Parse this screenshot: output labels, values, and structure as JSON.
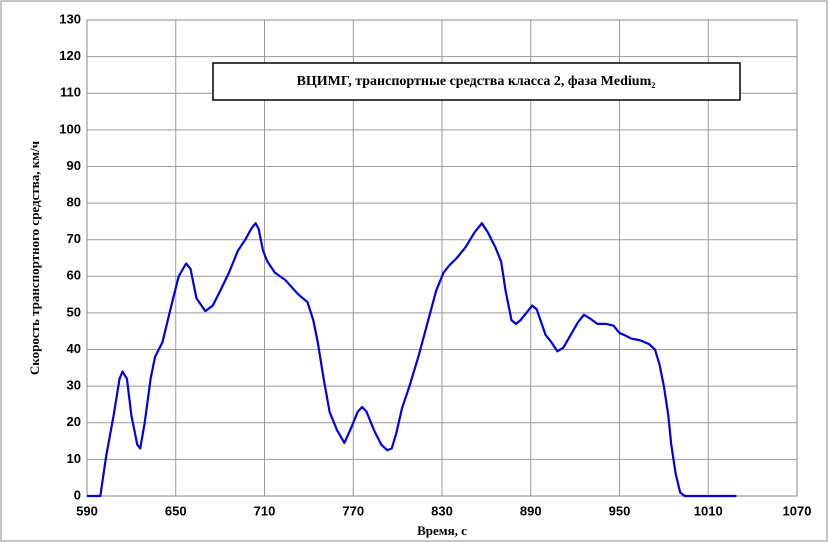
{
  "chart_data": {
    "type": "line",
    "title": "ВЦИМГ, транспортные средства класса 2, фаза Medium₂",
    "x_label": "Время, с",
    "y_label": "Скорость транспортного средства, км/ч",
    "x": [
      590,
      599,
      603,
      608,
      612,
      614,
      617,
      620,
      624,
      626,
      629,
      633,
      636,
      641,
      647,
      652,
      657,
      660,
      664,
      670,
      675,
      680,
      686,
      692,
      697,
      701,
      704,
      706,
      709,
      712,
      717,
      724,
      733,
      739,
      743,
      746,
      750,
      754,
      759,
      764,
      769,
      773,
      776,
      779,
      784,
      789,
      793,
      796,
      799,
      803,
      808,
      814,
      820,
      826,
      831,
      835,
      840,
      846,
      852,
      857,
      861,
      866,
      870,
      873,
      877,
      880,
      883,
      887,
      891,
      894,
      900,
      904,
      908,
      912,
      917,
      922,
      926,
      930,
      935,
      941,
      946,
      950,
      953,
      958,
      964,
      970,
      974,
      977,
      980,
      983,
      985,
      988,
      991,
      994,
      1029
    ],
    "series": [
      {
        "name": "Скорость",
        "color": "#0000e0",
        "values": [
          0,
          0,
          11,
          22,
          32,
          34,
          32,
          22,
          14,
          13,
          20,
          32,
          38,
          42,
          52,
          60,
          63.5,
          62,
          54,
          50.5,
          52,
          56,
          61,
          67,
          70,
          73,
          74.5,
          73,
          67,
          64,
          61,
          59,
          55,
          53,
          48,
          42,
          32,
          23,
          18,
          14.5,
          19,
          23,
          24.3,
          23,
          18,
          14,
          12.5,
          13,
          17,
          24,
          30,
          38,
          47,
          56,
          61,
          63,
          65,
          68,
          72,
          74.5,
          72,
          68,
          64,
          56,
          48,
          47,
          48,
          50,
          52,
          51,
          44,
          42,
          39.5,
          40.5,
          44,
          47.5,
          49.5,
          48.5,
          47,
          47,
          46.5,
          44.5,
          44,
          43,
          42.5,
          41.5,
          40,
          36,
          30,
          22,
          14,
          6,
          1,
          0,
          0
        ]
      }
    ],
    "xlim": [
      590,
      1070
    ],
    "xticks": [
      590,
      650,
      710,
      770,
      830,
      890,
      950,
      1010,
      1070
    ],
    "ylim": [
      0,
      130
    ],
    "yticks": [
      0,
      10,
      20,
      30,
      40,
      50,
      60,
      70,
      80,
      90,
      100,
      110,
      120,
      130
    ],
    "grid": true
  }
}
